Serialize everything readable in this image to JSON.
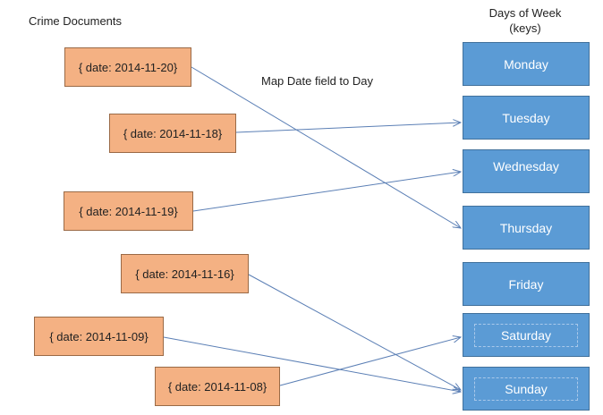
{
  "labels": {
    "crime_documents": "Crime Documents",
    "map_note": "Map Date field to Day",
    "days_of_week_line1": "Days of Week",
    "days_of_week_line2": "(keys)"
  },
  "documents": [
    {
      "text": "{ date: 2014-11-20}",
      "target": "Thursday"
    },
    {
      "text": "{ date: 2014-11-18}",
      "target": "Tuesday"
    },
    {
      "text": "{ date: 2014-11-19}",
      "target": "Wednesday"
    },
    {
      "text": "{ date: 2014-11-16}",
      "target": "Sunday"
    },
    {
      "text": "{ date: 2014-11-09}",
      "target": "Sunday"
    },
    {
      "text": "{ date: 2014-11-08}",
      "target": "Saturday"
    }
  ],
  "days": [
    "Monday",
    "Tuesday",
    "Wednesday",
    "Thursday",
    "Friday",
    "Saturday",
    "Sunday"
  ],
  "colors": {
    "document_fill": "#f4b183",
    "day_fill": "#5b9bd5",
    "arrow": "#5b7fb5"
  }
}
